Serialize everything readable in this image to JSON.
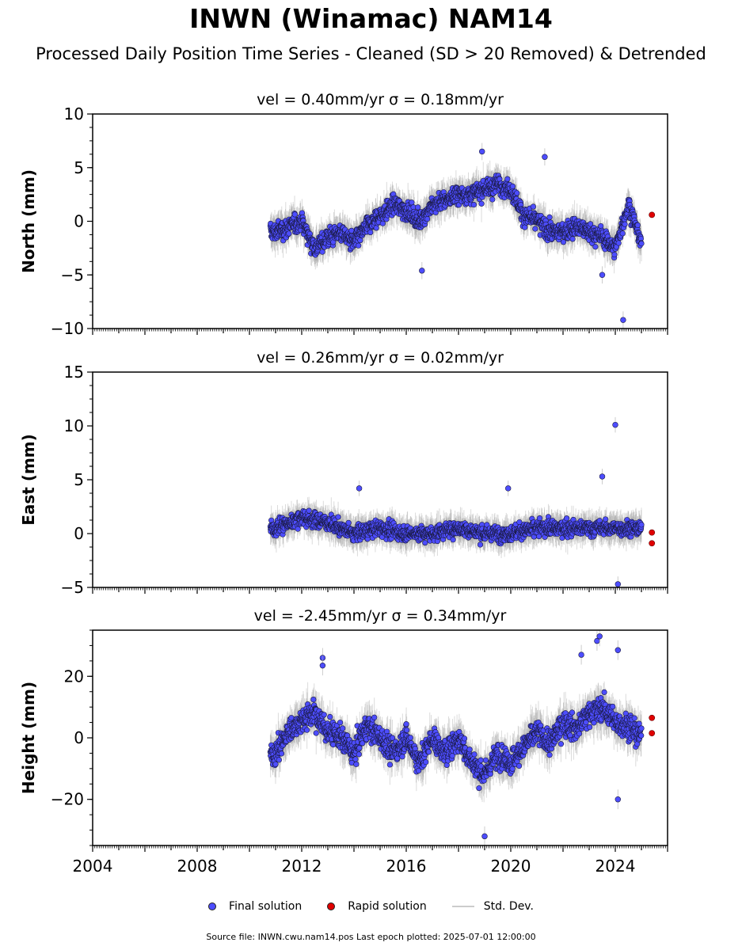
{
  "title": "INWN (Winamac) NAM14",
  "subtitle": "Processed Daily Position Time Series - Cleaned (SD > 20 Removed) & Detrended",
  "legend": {
    "final_label": "Final solution",
    "rapid_label": "Rapid solution",
    "std_label": "Std. Dev."
  },
  "footer": "Source file: INWN.cwu.nam14.pos  Last epoch plotted: 2025-07-01 12:00:00",
  "colors": {
    "final": "#4d4dff",
    "rapid": "#e00000",
    "std": "#cccccc"
  },
  "chart_data": [
    {
      "type": "scatter",
      "title": "vel = 0.40mm/yr   σ = 0.18mm/yr",
      "ylabel": "North (mm)",
      "xlim": [
        2004,
        2026
      ],
      "ylim": [
        -10,
        10
      ],
      "yticks": [
        -10,
        -5,
        0,
        5,
        10
      ],
      "xticks": [
        2004,
        2008,
        2012,
        2016,
        2020,
        2024
      ],
      "data_start": 2010.8,
      "data_end": 2025.0,
      "series": [
        {
          "name": "Final solution",
          "x": [
            2011.0,
            2011.5,
            2012.0,
            2012.5,
            2013.0,
            2013.5,
            2014.0,
            2014.5,
            2015.0,
            2015.5,
            2016.0,
            2016.5,
            2017.0,
            2017.5,
            2018.0,
            2018.5,
            2019.0,
            2019.5,
            2020.0,
            2020.5,
            2021.0,
            2021.5,
            2022.0,
            2022.5,
            2023.0,
            2023.5,
            2024.0,
            2024.5,
            2025.0
          ],
          "y": [
            -1.0,
            -0.5,
            0.0,
            -2.5,
            -1.5,
            -1.0,
            -2.0,
            -0.5,
            0.5,
            1.5,
            1.0,
            0.0,
            1.5,
            2.0,
            2.5,
            2.5,
            3.0,
            3.5,
            3.0,
            0.5,
            0.0,
            -1.0,
            -1.0,
            -0.5,
            -1.0,
            -1.5,
            -2.5,
            1.5,
            -2.0
          ]
        },
        {
          "name": "Rapid solution",
          "x": [
            2025.4
          ],
          "y": [
            0.6
          ]
        }
      ],
      "outliers": {
        "x": [
          2021.3,
          2023.5,
          2024.3,
          2016.6,
          2018.9
        ],
        "y": [
          6.0,
          -5.0,
          -9.2,
          -4.6,
          6.5
        ]
      }
    },
    {
      "type": "scatter",
      "title": "vel = 0.26mm/yr   σ = 0.02mm/yr",
      "ylabel": "East (mm)",
      "xlim": [
        2004,
        2026
      ],
      "ylim": [
        -5,
        15
      ],
      "yticks": [
        -5,
        0,
        5,
        10,
        15
      ],
      "xticks": [
        2004,
        2008,
        2012,
        2016,
        2020,
        2024
      ],
      "data_start": 2010.8,
      "data_end": 2025.0,
      "series": [
        {
          "name": "Final solution",
          "x": [
            2011.0,
            2012.0,
            2013.0,
            2014.0,
            2015.0,
            2016.0,
            2017.0,
            2018.0,
            2019.0,
            2020.0,
            2021.0,
            2022.0,
            2023.0,
            2024.0,
            2025.0
          ],
          "y": [
            0.5,
            1.5,
            1.0,
            0.0,
            0.5,
            0.0,
            0.0,
            0.5,
            0.0,
            0.0,
            0.5,
            0.5,
            0.5,
            0.5,
            0.5
          ]
        },
        {
          "name": "Rapid solution",
          "x": [
            2025.4,
            2025.4
          ],
          "y": [
            0.1,
            -0.9
          ]
        }
      ],
      "outliers": {
        "x": [
          2024.0,
          2023.5,
          2024.1,
          2014.2,
          2019.9
        ],
        "y": [
          10.1,
          5.3,
          -4.7,
          4.2,
          4.2
        ]
      }
    },
    {
      "type": "scatter",
      "title": "vel = -2.45mm/yr   σ = 0.34mm/yr",
      "ylabel": "Height (mm)",
      "xlim": [
        2004,
        2026
      ],
      "ylim": [
        -35,
        35
      ],
      "yticks": [
        -20,
        0,
        20
      ],
      "xticks": [
        2004,
        2008,
        2012,
        2016,
        2020,
        2024
      ],
      "xtick_labels": [
        "2004",
        "2008",
        "2012",
        "2016",
        "2020",
        "2024"
      ],
      "data_start": 2010.8,
      "data_end": 2025.0,
      "series": [
        {
          "name": "Final solution",
          "x": [
            2011.0,
            2011.5,
            2012.0,
            2012.5,
            2013.0,
            2013.5,
            2014.0,
            2014.5,
            2015.0,
            2015.5,
            2016.0,
            2016.5,
            2017.0,
            2017.5,
            2018.0,
            2018.5,
            2019.0,
            2019.5,
            2020.0,
            2020.5,
            2021.0,
            2021.5,
            2022.0,
            2022.5,
            2023.0,
            2023.5,
            2024.0,
            2024.5,
            2025.0
          ],
          "y": [
            -5.0,
            2.0,
            6.0,
            8.0,
            2.0,
            0.0,
            -5.0,
            4.0,
            0.0,
            -5.0,
            0.0,
            -8.0,
            0.0,
            -5.0,
            0.0,
            -8.0,
            -12.0,
            -5.0,
            -8.0,
            -3.0,
            2.0,
            -2.0,
            5.0,
            3.0,
            8.0,
            10.0,
            5.0,
            4.0,
            0.0
          ]
        },
        {
          "name": "Rapid solution",
          "x": [
            2025.4,
            2025.4
          ],
          "y": [
            6.5,
            1.5
          ]
        }
      ],
      "outliers": {
        "x": [
          2012.8,
          2012.8,
          2022.7,
          2023.3,
          2023.4,
          2024.1,
          2024.1,
          2019.0
        ],
        "y": [
          26.0,
          23.5,
          27.0,
          31.5,
          33.0,
          28.5,
          -20.0,
          -32.0
        ]
      }
    }
  ]
}
